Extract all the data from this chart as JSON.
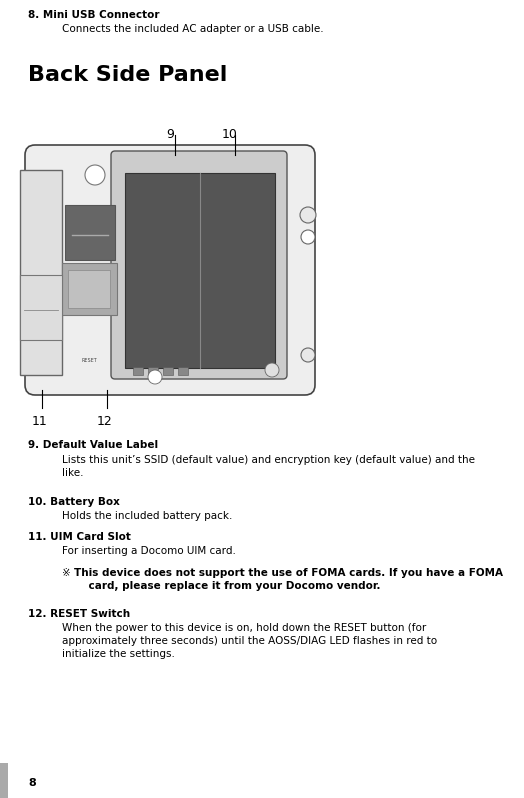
{
  "bg_color": "#ffffff",
  "text_color": "#000000",
  "page_number": "8",
  "section8_title": "8. Mini USB Connector",
  "section8_body": "Connects the included AC adapter or a USB cable.",
  "heading": "Back Side Panel",
  "section9_title": "9. Default Value Label",
  "section9_body": "Lists this unit’s SSID (default value) and encryption key (default value) and the\nlike.",
  "section10_title": "10. Battery Box",
  "section10_body": "Holds the included battery pack.",
  "section11_title": "11. UIM Card Slot",
  "section11_body": "For inserting a Docomo UIM card.",
  "section12_title": "12. RESET Switch",
  "section12_body": "When the power to this device is on, hold down the RESET button (for\napproximately three seconds) until the AOSS/DIAG LED flashes in red to\ninitialize the settings."
}
